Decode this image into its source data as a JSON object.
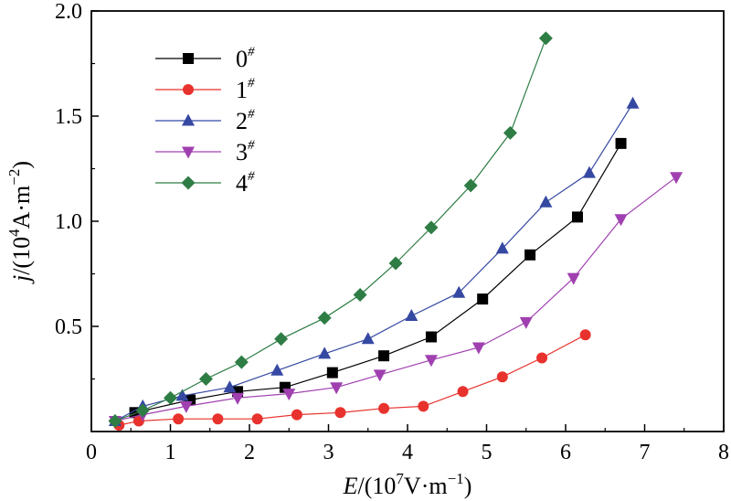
{
  "chart_data": {
    "type": "line",
    "title": "",
    "xlabel": {
      "prefix": "E",
      "unit_pre": "/(10",
      "unit_exp": "7",
      "unit_mid": "V·m",
      "unit_exp2": "−1",
      "unit_post": ")"
    },
    "ylabel": {
      "prefix": "j",
      "unit_pre": "/(10",
      "unit_exp": "4",
      "unit_mid": "A·m",
      "unit_exp2": "−2",
      "unit_post": ")"
    },
    "xlim": [
      0,
      8
    ],
    "ylim": [
      0,
      2.0
    ],
    "xticks": [
      0,
      1,
      2,
      3,
      4,
      5,
      6,
      7,
      8
    ],
    "yticks": [
      0.5,
      1.0,
      1.5,
      2.0
    ],
    "xtick_labels": [
      "0",
      "1",
      "2",
      "3",
      "4",
      "5",
      "6",
      "7",
      "8"
    ],
    "ytick_labels": [
      "0.5",
      "1.0",
      "1.5",
      "2.0"
    ],
    "legend_position": "top-left",
    "series": [
      {
        "name": "0",
        "sup": "#",
        "color": "#000000",
        "marker": "square",
        "x": [
          0.55,
          1.25,
          1.85,
          2.45,
          3.05,
          3.7,
          4.3,
          4.95,
          5.55,
          6.15,
          6.7
        ],
        "y": [
          0.09,
          0.15,
          0.19,
          0.21,
          0.28,
          0.36,
          0.45,
          0.63,
          0.84,
          1.02,
          1.37
        ]
      },
      {
        "name": "1",
        "sup": "#",
        "color": "#e8322d",
        "marker": "circle",
        "x": [
          0.35,
          0.6,
          1.1,
          1.6,
          2.1,
          2.6,
          3.15,
          3.7,
          4.2,
          4.7,
          5.2,
          5.7,
          6.25
        ],
        "y": [
          0.03,
          0.05,
          0.06,
          0.06,
          0.06,
          0.08,
          0.09,
          0.11,
          0.12,
          0.19,
          0.26,
          0.35,
          0.46
        ]
      },
      {
        "name": "2",
        "sup": "#",
        "color": "#3548a2",
        "marker": "triangle-up",
        "x": [
          0.3,
          0.65,
          1.15,
          1.75,
          2.35,
          2.95,
          3.5,
          4.05,
          4.65,
          5.2,
          5.75,
          6.3,
          6.85
        ],
        "y": [
          0.05,
          0.12,
          0.17,
          0.21,
          0.29,
          0.37,
          0.44,
          0.55,
          0.66,
          0.87,
          1.09,
          1.23,
          1.56
        ]
      },
      {
        "name": "3",
        "sup": "#",
        "color": "#a040b0",
        "marker": "triangle-down",
        "x": [
          0.3,
          0.65,
          1.2,
          1.85,
          2.5,
          3.1,
          3.65,
          4.3,
          4.9,
          5.5,
          6.1,
          6.7,
          7.4
        ],
        "y": [
          0.05,
          0.08,
          0.12,
          0.16,
          0.18,
          0.21,
          0.27,
          0.34,
          0.4,
          0.52,
          0.73,
          1.01,
          1.21
        ]
      },
      {
        "name": "4",
        "sup": "#",
        "color": "#2e7d45",
        "marker": "diamond",
        "x": [
          0.3,
          0.65,
          1.0,
          1.45,
          1.9,
          2.4,
          2.95,
          3.4,
          3.85,
          4.3,
          4.8,
          5.3,
          5.75
        ],
        "y": [
          0.05,
          0.1,
          0.16,
          0.25,
          0.33,
          0.44,
          0.54,
          0.65,
          0.8,
          0.97,
          1.17,
          1.42,
          1.87
        ]
      }
    ]
  }
}
